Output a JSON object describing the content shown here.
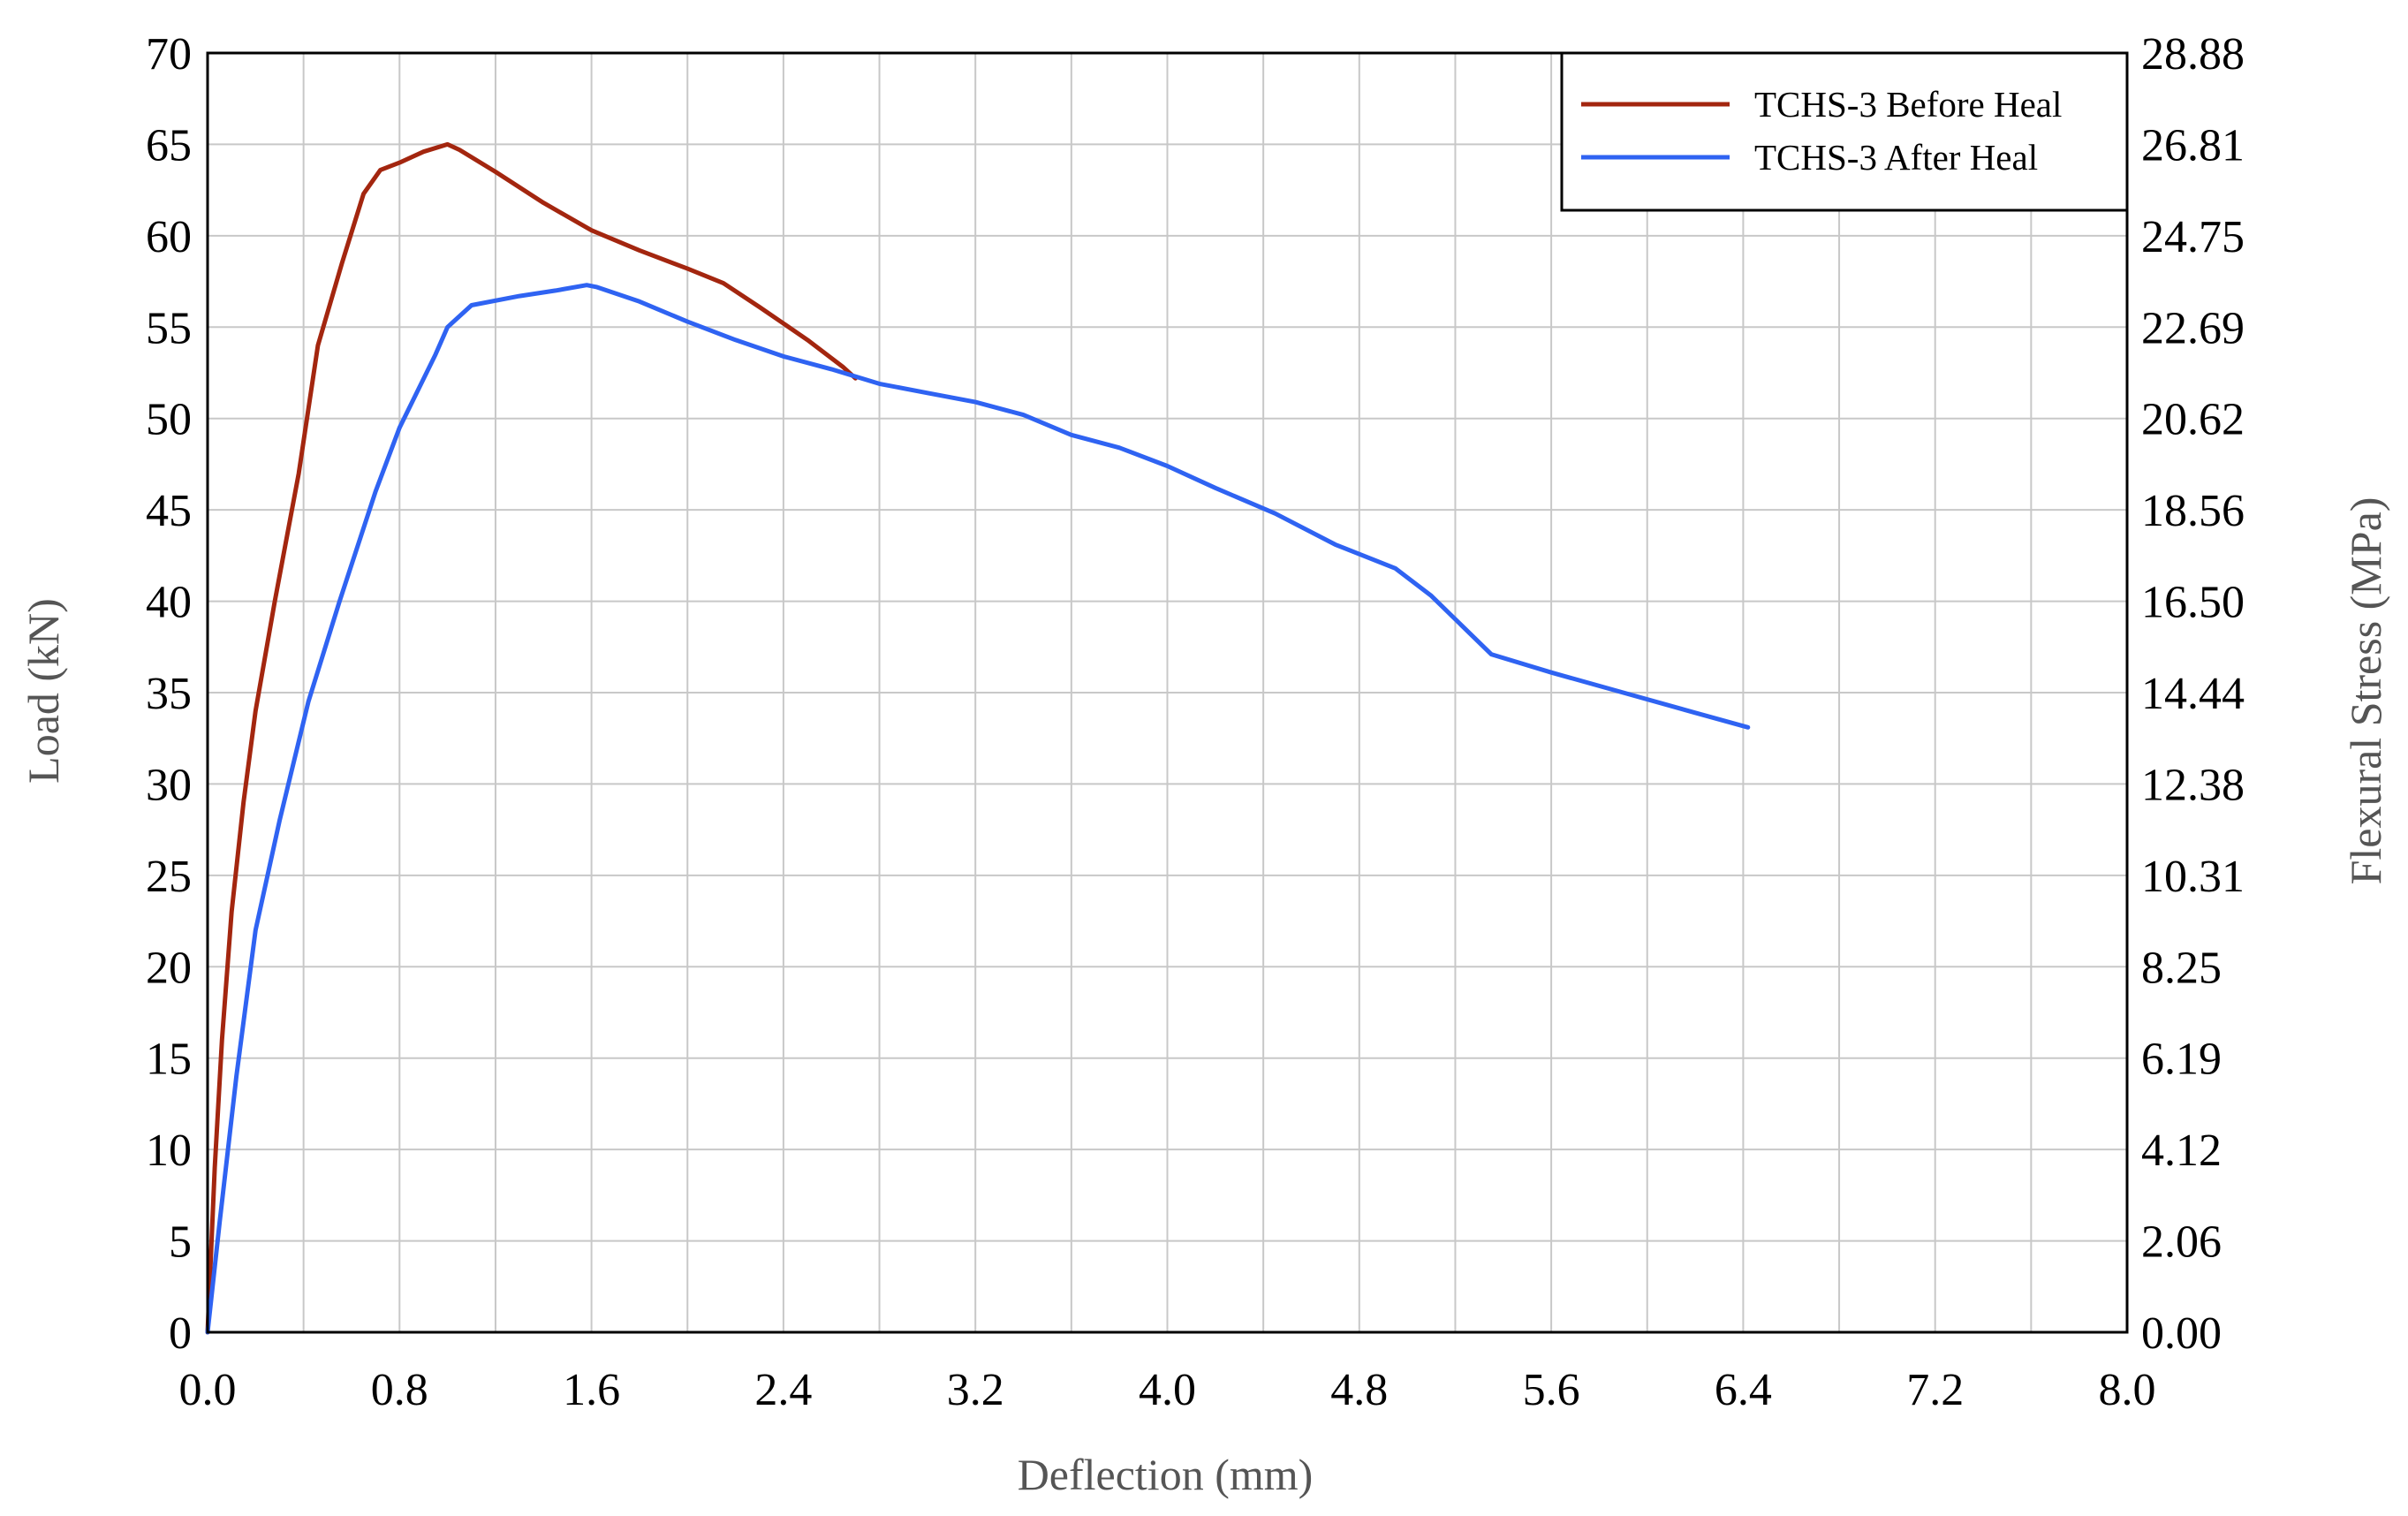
{
  "chart_data": {
    "type": "line",
    "xlabel": "Deflection (mm)",
    "ylabel": "Load (kN)",
    "y2label": "Flexural Stress (MPa)",
    "xlim": [
      0.0,
      8.0
    ],
    "ylim": [
      0,
      70
    ],
    "x_ticks": [
      "0.0",
      "0.8",
      "1.6",
      "2.4",
      "3.2",
      "4.0",
      "4.8",
      "5.6",
      "6.4",
      "7.2",
      "8.0"
    ],
    "y_ticks": [
      "0",
      "5",
      "10",
      "15",
      "20",
      "25",
      "30",
      "35",
      "40",
      "45",
      "50",
      "55",
      "60",
      "65",
      "70"
    ],
    "y2_ticks": [
      "0.00",
      "2.06",
      "4.12",
      "6.19",
      "8.25",
      "10.31",
      "12.38",
      "14.44",
      "16.50",
      "18.56",
      "20.62",
      "22.69",
      "24.75",
      "26.81",
      "28.88"
    ],
    "grid": true,
    "x_minor_step": 0.4,
    "y_minor_step": 5,
    "legend_position": "top-right",
    "series": [
      {
        "name": "TCHS-3 Before Heal",
        "color": "#a3260f",
        "x": [
          0.0,
          0.03,
          0.06,
          0.1,
          0.15,
          0.2,
          0.28,
          0.38,
          0.46,
          0.56,
          0.65,
          0.72,
          0.8,
          0.9,
          1.0,
          1.05,
          1.2,
          1.4,
          1.6,
          1.8,
          2.0,
          2.15,
          2.3,
          2.5,
          2.65,
          2.7
        ],
        "y": [
          0,
          9,
          16,
          23,
          29,
          34,
          40,
          47,
          54,
          58.5,
          62.3,
          63.6,
          64.0,
          64.6,
          65.0,
          64.7,
          63.5,
          61.8,
          60.3,
          59.2,
          58.2,
          57.4,
          56.1,
          54.3,
          52.8,
          52.2
        ]
      },
      {
        "name": "TCHS-3 After Heal",
        "color": "#2f63f2",
        "x": [
          0.0,
          0.05,
          0.12,
          0.2,
          0.3,
          0.42,
          0.55,
          0.7,
          0.8,
          0.95,
          1.0,
          1.1,
          1.3,
          1.45,
          1.58,
          1.62,
          1.8,
          2.0,
          2.2,
          2.4,
          2.6,
          2.8,
          3.0,
          3.2,
          3.4,
          3.6,
          3.8,
          4.0,
          4.2,
          4.45,
          4.7,
          4.95,
          5.1,
          5.35,
          5.6,
          5.9,
          6.2,
          6.42
        ],
        "y": [
          0,
          6,
          14,
          22,
          28,
          34.5,
          40,
          46,
          49.5,
          53.5,
          55,
          56.2,
          56.7,
          57.0,
          57.3,
          57.2,
          56.4,
          55.3,
          54.3,
          53.4,
          52.7,
          51.9,
          51.4,
          50.9,
          50.2,
          49.1,
          48.4,
          47.4,
          46.2,
          44.8,
          43.1,
          41.8,
          40.3,
          37.1,
          36.1,
          35.0,
          33.9,
          33.1
        ]
      }
    ]
  }
}
